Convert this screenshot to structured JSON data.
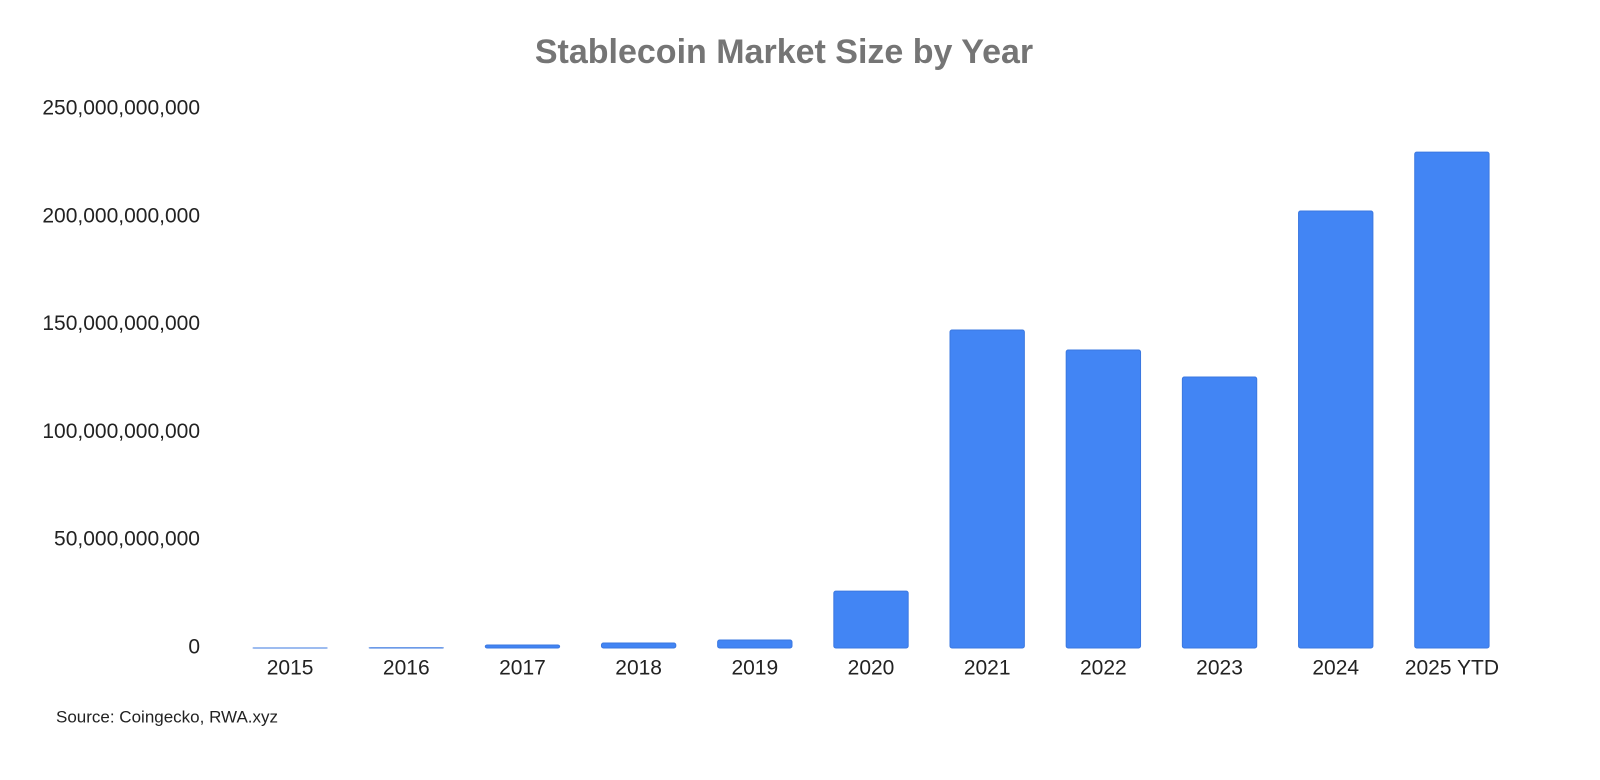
{
  "chart_data": {
    "type": "bar",
    "title": "Stablecoin Market Size by Year",
    "categories": [
      "2015",
      "2016",
      "2017",
      "2018",
      "2019",
      "2020",
      "2021",
      "2022",
      "2023",
      "2024",
      "2025 YTD"
    ],
    "values": [
      20000000,
      100000000,
      1400000000,
      2300000000,
      3700000000,
      26400000000,
      147500000000,
      138200000000,
      125700000000,
      202700000000,
      230000000000
    ],
    "color": "#4285f4",
    "ylim": [
      0,
      250000000000
    ],
    "yticks": [
      0,
      {
        "value": 50000000000,
        "label": "50,000,000,000"
      },
      {
        "value": 100000000000,
        "label": "100,000,000,000"
      },
      {
        "value": 150000000000,
        "label": "150,000,000,000"
      },
      {
        "value": 200000000000,
        "label": "200,000,000,000"
      },
      {
        "value": 250000000000,
        "label": "250,000,000,000"
      }
    ],
    "grid": false,
    "source": "Source: Coingecko, RWA.xyz"
  }
}
